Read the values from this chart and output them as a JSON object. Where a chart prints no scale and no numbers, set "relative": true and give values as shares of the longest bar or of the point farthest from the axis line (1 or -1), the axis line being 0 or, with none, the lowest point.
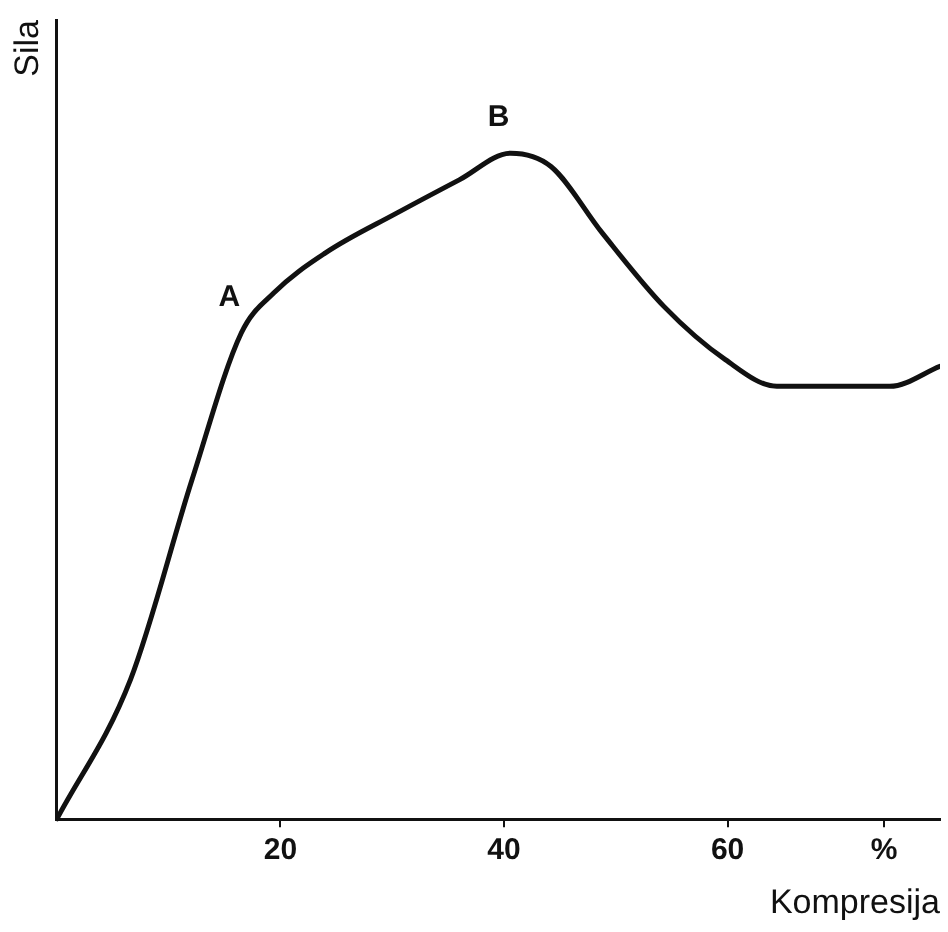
{
  "chart_data": {
    "type": "line",
    "relative": true,
    "xlabel": "Kompresija",
    "ylabel": "Sila",
    "x": [
      0,
      6.6,
      12.1,
      16.5,
      19.4,
      24,
      30.4,
      36,
      40.6,
      44.2,
      48.8,
      54.3,
      59.8,
      64.4,
      69.9,
      74.5,
      79
    ],
    "series": [
      {
        "color": "#111111",
        "values": [
          0,
          0.21,
          0.51,
          0.73,
          0.79,
          0.85,
          0.91,
          0.96,
          1,
          0.98,
          0.88,
          0.77,
          0.69,
          0.65,
          0.65,
          0.65,
          0.68
        ]
      }
    ],
    "xlim": [
      0,
      79
    ],
    "xticks": [
      20,
      40,
      60,
      {
        "value": 74,
        "label": "%"
      }
    ],
    "annotations": [
      {
        "text": "A",
        "x": 16.5,
        "y": 0.73
      },
      {
        "text": "B",
        "x": 40.6,
        "y": 1
      }
    ],
    "grid": false,
    "legend": false,
    "marker": "none",
    "line_style": "solid"
  }
}
